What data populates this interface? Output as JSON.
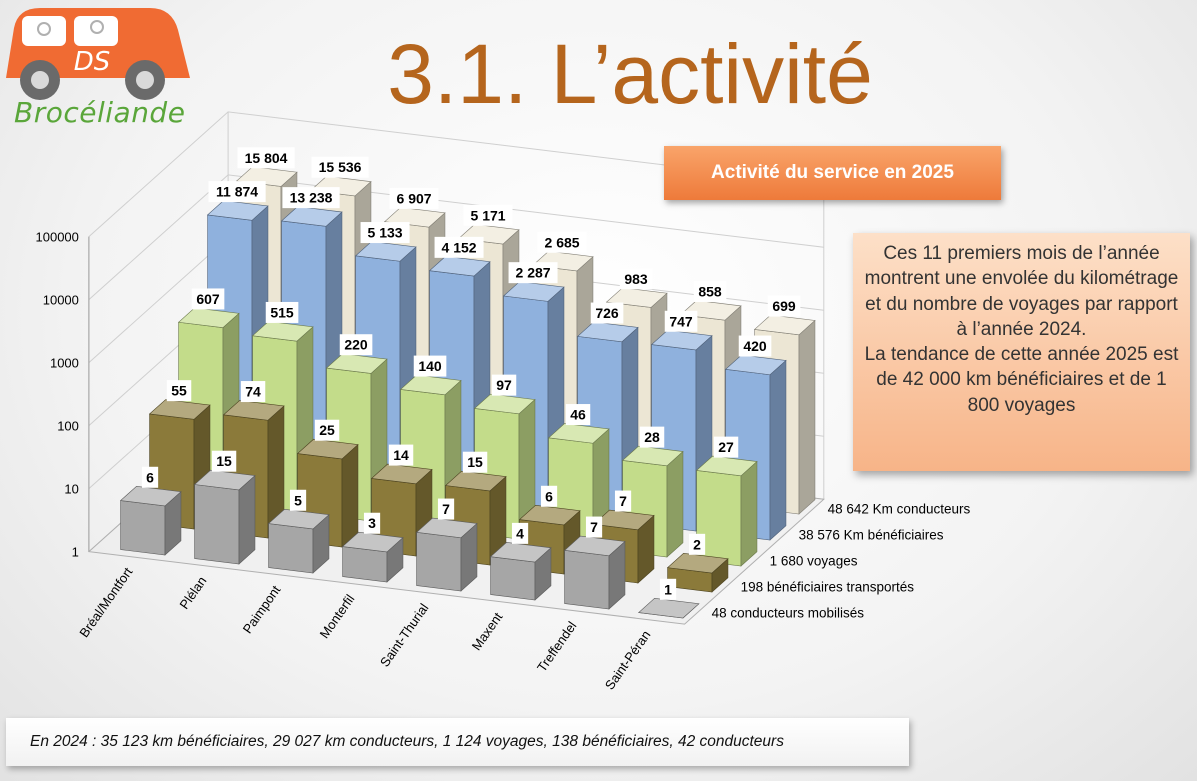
{
  "logo": {
    "car_label": "DS",
    "text": "Brocéliande"
  },
  "title": "3.1. L’activité",
  "service_banner": "Activité du service en 2025",
  "note": {
    "paragraph1": "Ces 11 premiers mois de l’année montrent une envolée du kilométrage et du nombre  de voyages par rapport à l’année 2024.",
    "paragraph2": "La tendance de cette année 2025 est de 42 000  km bénéficiaires et de 1 800 voyages"
  },
  "footer": "En 2024 : 35 123 km bénéficiaires, 29 027 km conducteurs, 1 124 voyages, 138 bénéficiaires, 42 conducteurs",
  "chart_data": {
    "type": "bar",
    "subtype": "3d-clustered-log",
    "title": "Activité du service en 2025",
    "yscale": "log",
    "ylim": [
      1,
      100000
    ],
    "yticks": [
      "1",
      "10",
      "100",
      "1000",
      "10000",
      "100000"
    ],
    "categories": [
      "Bréal/Montfort",
      "Plélan",
      "Paimpont",
      "Monterfil",
      "Saint-Thurial",
      "Maxent",
      "Treffendel",
      "Saint-Péran"
    ],
    "series": [
      {
        "name": "48 conducteurs mobilisés",
        "color": "#a6a6a6",
        "values": [
          6,
          15,
          5,
          3,
          7,
          4,
          7,
          1
        ],
        "labels": [
          "6",
          "15",
          "5",
          "3",
          "7",
          "4",
          "7",
          "1"
        ]
      },
      {
        "name": "198 bénéficiaires transportés",
        "color": "#8b7a3a",
        "values": [
          55,
          74,
          25,
          14,
          15,
          6,
          7,
          2
        ],
        "labels": [
          "55",
          "74",
          "25",
          "14",
          "15",
          "6",
          "7",
          "2"
        ]
      },
      {
        "name": "1 680 voyages",
        "color": "#c3dc8a",
        "values": [
          607,
          515,
          220,
          140,
          97,
          46,
          28,
          27
        ],
        "labels": [
          "607",
          "515",
          "220",
          "140",
          "97",
          "46",
          "28",
          "27"
        ]
      },
      {
        "name": "38 576 Km bénéficiaires",
        "color": "#8fb1dd",
        "values": [
          11874,
          13238,
          5133,
          4152,
          2287,
          726,
          747,
          420
        ],
        "labels": [
          "11 874",
          "13 238",
          "5 133",
          "4 152",
          "2 287",
          "726",
          "747",
          "420"
        ]
      },
      {
        "name": "48 642 Km conducteurs",
        "color": "#ece6d4",
        "values": [
          15804,
          15536,
          6907,
          5171,
          2685,
          983,
          858,
          699
        ],
        "labels": [
          "15 804",
          "15 536",
          "6 907",
          "5 171",
          "2 685",
          "983",
          "858",
          "699"
        ]
      }
    ]
  }
}
